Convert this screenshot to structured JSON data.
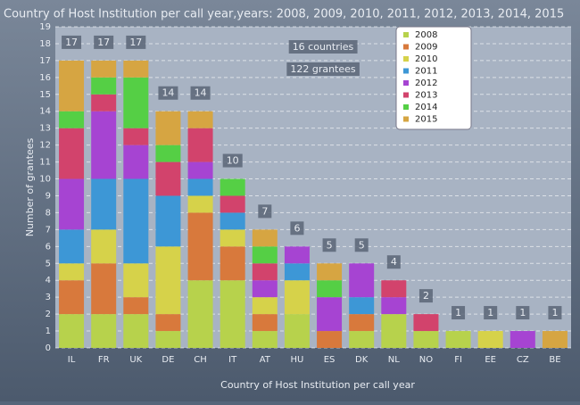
{
  "chart_data": {
    "type": "stacked_bar",
    "title": "Country of Host Institution per call year,years: 2008, 2009, 2010, 2011, 2012, 2013, 2014, 2015",
    "x_label": "Country of Host Institution per call year",
    "y_label": "Number of grantees",
    "annotations": [
      "16 countries",
      "122 grantees"
    ],
    "categories": [
      "IL",
      "FR",
      "UK",
      "DE",
      "CH",
      "IT",
      "AT",
      "HU",
      "ES",
      "DK",
      "NL",
      "NO",
      "FI",
      "EE",
      "CZ",
      "BE"
    ],
    "totals": [
      17,
      17,
      17,
      14,
      14,
      10,
      7,
      6,
      5,
      5,
      4,
      2,
      1,
      1,
      1,
      1
    ],
    "series": [
      {
        "name": "2008",
        "color": "#b7d24c",
        "values": [
          2,
          2,
          2,
          1,
          4,
          4,
          1,
          2,
          0,
          1,
          2,
          1,
          1,
          0,
          0,
          0
        ]
      },
      {
        "name": "2009",
        "color": "#d8793c",
        "values": [
          2,
          3,
          1,
          1,
          4,
          2,
          1,
          0,
          1,
          1,
          0,
          0,
          0,
          0,
          0,
          0
        ]
      },
      {
        "name": "2010",
        "color": "#d6d24a",
        "values": [
          1,
          2,
          2,
          4,
          1,
          1,
          1,
          2,
          0,
          0,
          0,
          0,
          0,
          1,
          0,
          0
        ]
      },
      {
        "name": "2011",
        "color": "#3d97d6",
        "values": [
          2,
          3,
          5,
          3,
          1,
          1,
          0,
          1,
          0,
          1,
          0,
          0,
          0,
          0,
          0,
          0
        ]
      },
      {
        "name": "2012",
        "color": "#a644d2",
        "values": [
          3,
          4,
          2,
          0,
          1,
          0,
          1,
          1,
          2,
          2,
          1,
          0,
          0,
          0,
          1,
          0
        ]
      },
      {
        "name": "2013",
        "color": "#d2436c",
        "values": [
          3,
          1,
          1,
          2,
          2,
          1,
          1,
          0,
          0,
          0,
          1,
          1,
          0,
          0,
          0,
          0
        ]
      },
      {
        "name": "2014",
        "color": "#55cf45",
        "values": [
          1,
          1,
          3,
          1,
          0,
          1,
          1,
          0,
          1,
          0,
          0,
          0,
          0,
          0,
          0,
          0
        ]
      },
      {
        "name": "2015",
        "color": "#d6a542",
        "values": [
          3,
          1,
          1,
          2,
          1,
          0,
          1,
          0,
          1,
          0,
          0,
          0,
          0,
          0,
          0,
          1
        ]
      }
    ],
    "ylim": [
      0,
      19
    ],
    "yticks": [
      0,
      1,
      2,
      3,
      4,
      5,
      6,
      7,
      8,
      9,
      10,
      11,
      12,
      13,
      14,
      15,
      16,
      17,
      18,
      19
    ],
    "grid": true
  }
}
